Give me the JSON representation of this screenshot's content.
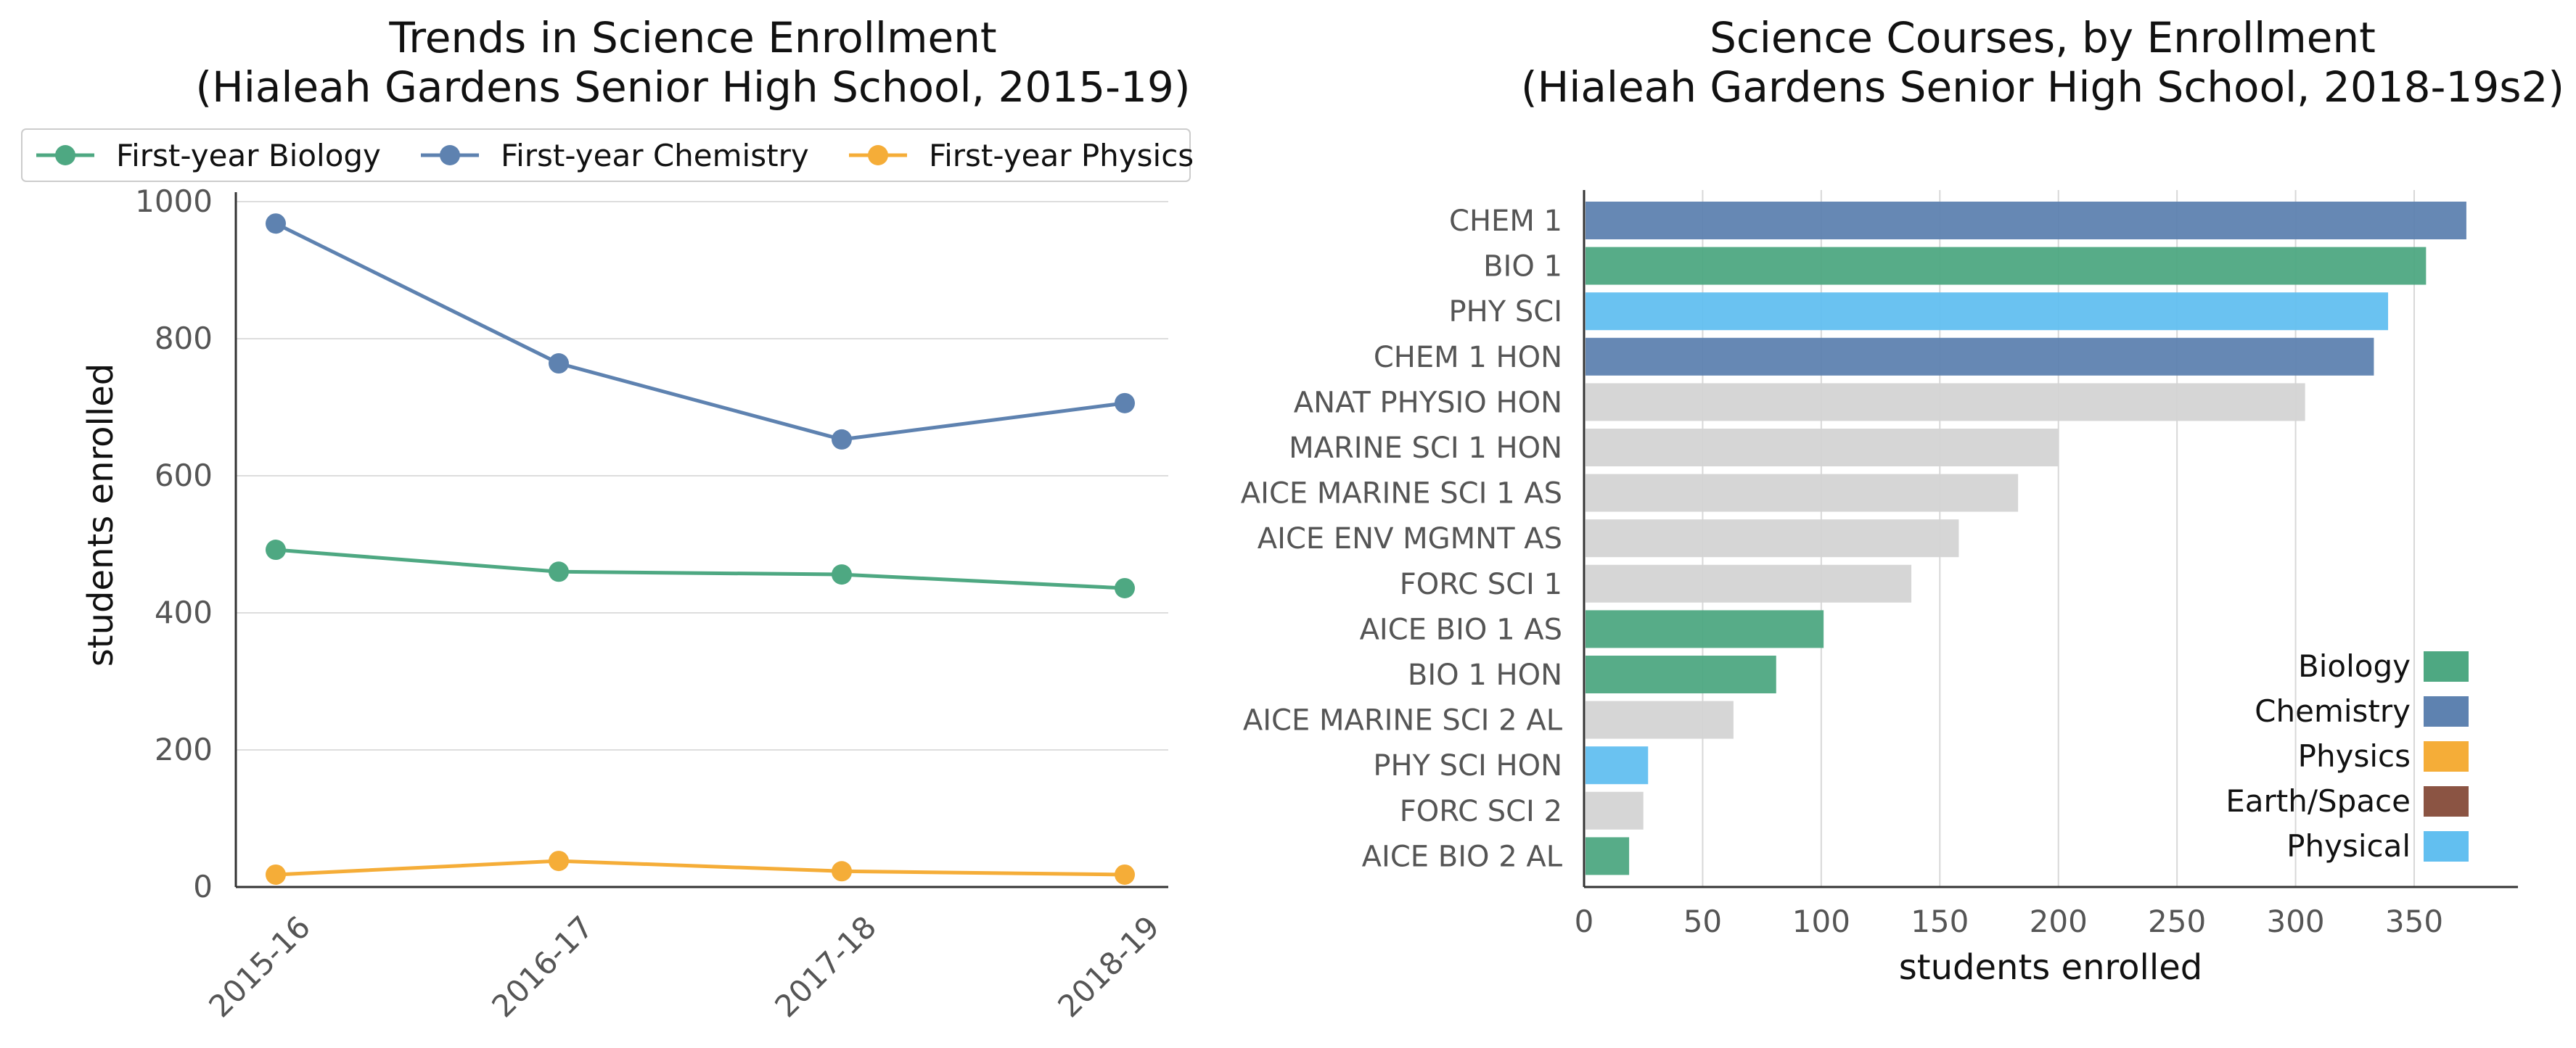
{
  "chart_data": [
    {
      "type": "line",
      "title": "Trends in Science Enrollment",
      "subtitle": "(Hialeah Gardens Senior High School, 2015-19)",
      "xlabel": "",
      "ylabel": "students enrolled",
      "categories": [
        "2015-16",
        "2016-17",
        "2017-18",
        "2018-19"
      ],
      "ylim": [
        0,
        1000
      ],
      "yticks": [
        0,
        200,
        400,
        600,
        800,
        1000
      ],
      "grid": "horizontal",
      "legend_position": "top",
      "series": [
        {
          "name": "First-year Biology",
          "color": "#4ea882",
          "values": [
            492,
            460,
            456,
            436
          ]
        },
        {
          "name": "First-year Chemistry",
          "color": "#5e82b0",
          "values": [
            968,
            764,
            653,
            706
          ]
        },
        {
          "name": "First-year Physics",
          "color": "#f5ad38",
          "values": [
            18,
            38,
            23,
            18
          ]
        }
      ]
    },
    {
      "type": "bar",
      "orientation": "horizontal",
      "title": "Science Courses, by Enrollment",
      "subtitle": "(Hialeah Gardens Senior High School, 2018-19s2)",
      "xlabel": "students enrolled",
      "ylabel": "",
      "xlim": [
        0,
        390
      ],
      "xticks": [
        0,
        50,
        100,
        150,
        200,
        250,
        300,
        350
      ],
      "grid": "vertical",
      "legend_position": "lower-right",
      "categories": [
        "CHEM 1",
        "BIO 1",
        "PHY SCI",
        "CHEM 1 HON",
        "ANAT PHYSIO HON",
        "MARINE SCI 1 HON",
        "AICE MARINE SCI 1 AS",
        "AICE ENV MGMNT AS",
        "FORC SCI 1",
        "AICE BIO 1 AS",
        "BIO 1 HON",
        "AICE MARINE SCI 2 AL",
        "PHY SCI HON",
        "FORC SCI 2",
        "AICE BIO 2 AL"
      ],
      "values": [
        372,
        355,
        339,
        333,
        304,
        200,
        183,
        158,
        138,
        101,
        81,
        63,
        27,
        25,
        19
      ],
      "bar_groups": [
        "Chemistry",
        "Biology",
        "Physical",
        "Chemistry",
        "Other",
        "Other",
        "Other",
        "Other",
        "Other",
        "Biology",
        "Biology",
        "Other",
        "Physical",
        "Other",
        "Biology"
      ],
      "group_colors": {
        "Biology": "#4ea882",
        "Chemistry": "#5e82b0",
        "Physics": "#f5ad38",
        "Earth/Space": "#8b5443",
        "Physical": "#62bff0",
        "Other": "#d4d4d4"
      },
      "legend": [
        "Biology",
        "Chemistry",
        "Physics",
        "Earth/Space",
        "Physical"
      ]
    }
  ]
}
